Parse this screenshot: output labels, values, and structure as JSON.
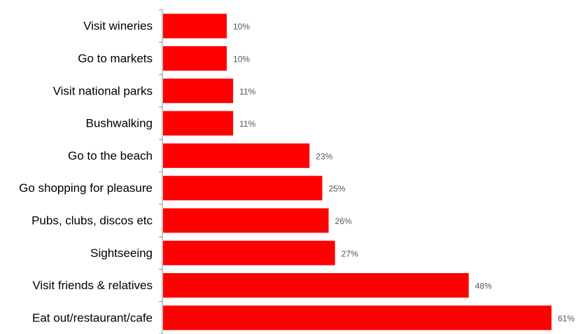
{
  "chart_data": {
    "type": "bar",
    "orientation": "horizontal",
    "categories": [
      "Visit wineries",
      "Go to markets",
      "Visit national parks",
      "Bushwalking",
      "Go to the beach",
      "Go shopping for pleasure",
      "Pubs, clubs, discos etc",
      "Sightseeing",
      "Visit friends & relatives",
      "Eat out/restaurant/cafe"
    ],
    "values": [
      10,
      10,
      11,
      11,
      23,
      25,
      26,
      27,
      48,
      61
    ],
    "value_labels": [
      "10%",
      "10%",
      "11%",
      "11%",
      "23%",
      "25%",
      "26%",
      "27%",
      "48%",
      "61%"
    ],
    "title": "",
    "xlabel": "",
    "ylabel": "",
    "xlim": [
      0,
      61
    ],
    "grid": false,
    "legend": "none",
    "bar_color": "#ff0000"
  }
}
